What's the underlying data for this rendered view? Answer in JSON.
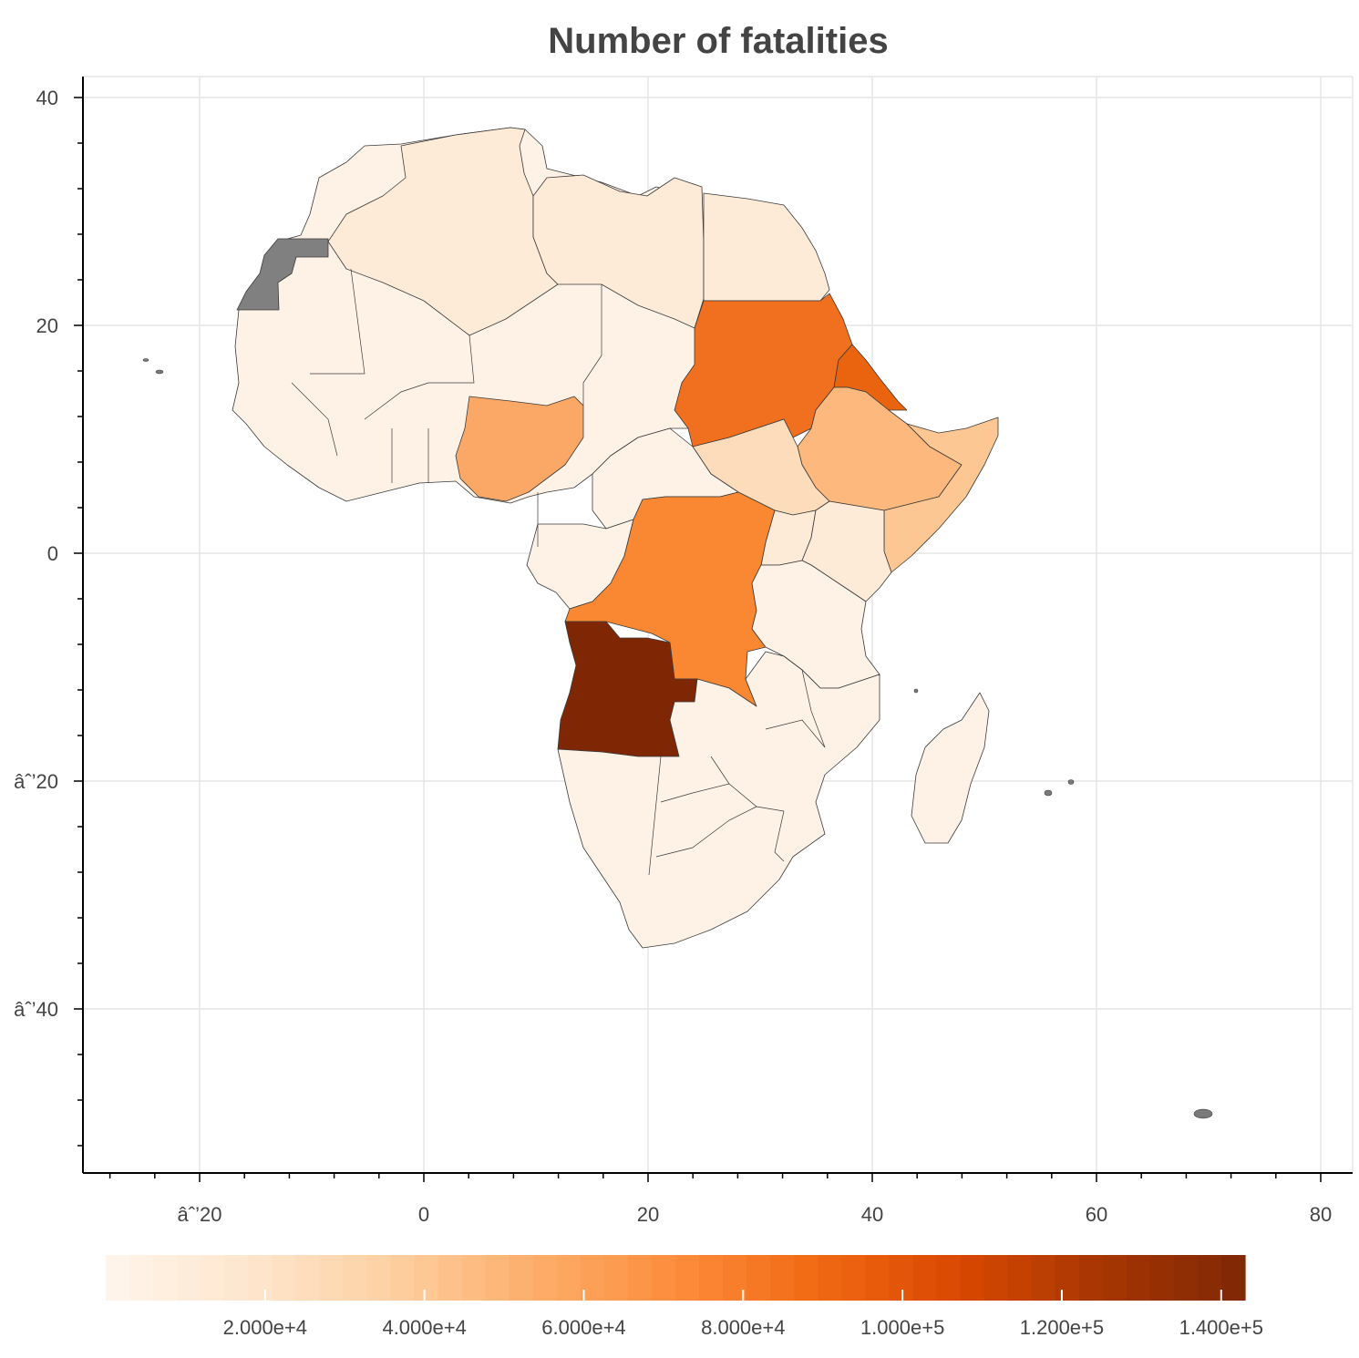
{
  "chart_data": {
    "type": "choropleth",
    "title": "Number of fatalities",
    "x_ticks": [
      "âˆ’20",
      "0",
      "20",
      "40",
      "60",
      "80"
    ],
    "y_ticks": [
      "40",
      "20",
      "0",
      "âˆ’20",
      "âˆ’40"
    ],
    "x_range": [
      -30,
      81
    ],
    "y_range": [
      -54,
      42
    ],
    "grid": true,
    "colorbar": {
      "palette": "Oranges",
      "range": [
        0,
        143000
      ],
      "tick_labels": [
        "2.000e+4",
        "4.000e+4",
        "6.000e+4",
        "8.000e+4",
        "1.000e+5",
        "1.200e+5",
        "1.400e+5"
      ],
      "tick_values": [
        20000,
        40000,
        60000,
        80000,
        100000,
        120000,
        140000
      ],
      "colors": [
        "#fff5eb",
        "#fee6ce",
        "#fdd0a2",
        "#fdae6b",
        "#fd8d3c",
        "#f16913",
        "#d94801",
        "#a63603",
        "#7f2704"
      ]
    },
    "regions": [
      {
        "name": "Angola",
        "value": 143000,
        "color": "#7f2704"
      },
      {
        "name": "Sudan",
        "value": 83000,
        "color": "#f07020"
      },
      {
        "name": "Eritrea",
        "value": 90000,
        "color": "#ea6410"
      },
      {
        "name": "Democratic Republic of the Congo",
        "value": 67000,
        "color": "#fa8832"
      },
      {
        "name": "Nigeria",
        "value": 50000,
        "color": "#fba866"
      },
      {
        "name": "Ethiopia",
        "value": 45000,
        "color": "#fcb87d"
      },
      {
        "name": "Somalia",
        "value": 38000,
        "color": "#fcc792"
      },
      {
        "name": "South Sudan",
        "value": 25000,
        "color": "#fddcbb"
      },
      {
        "name": "Algeria",
        "value": 12000,
        "color": "#fdebd8"
      },
      {
        "name": "Libya",
        "value": 10000,
        "color": "#fdebd8"
      },
      {
        "name": "Egypt",
        "value": 10000,
        "color": "#fdebd8"
      },
      {
        "name": "Kenya",
        "value": 10000,
        "color": "#fdebd8"
      },
      {
        "name": "Uganda",
        "value": 10000,
        "color": "#fdebd8"
      },
      {
        "name": "Western Sahara",
        "value": null,
        "color": "#808080"
      }
    ]
  }
}
